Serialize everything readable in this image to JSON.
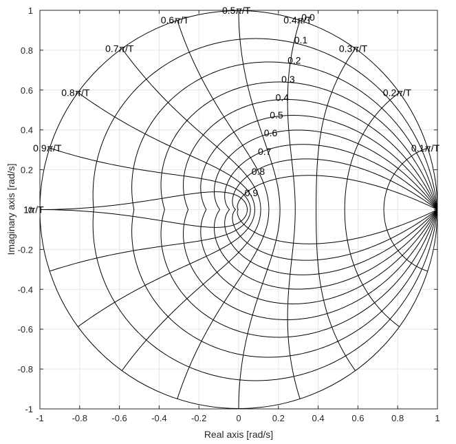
{
  "chart_data": {
    "type": "line",
    "title": "",
    "xlabel": "Real axis [rad/s]",
    "ylabel": "Imaginary axis [rad/s]",
    "xlim": [
      -1,
      1
    ],
    "ylim": [
      -1,
      1
    ],
    "grid": true,
    "x_ticks": [
      "-1",
      "-0.8",
      "-0.6",
      "-0.4",
      "-0.2",
      "0",
      "0.2",
      "0.4",
      "0.6",
      "0.8",
      "1"
    ],
    "y_ticks": [
      "1",
      "0.8",
      "0.6",
      "0.4",
      "0.2",
      "0",
      "-0.2",
      "-0.4",
      "-0.6",
      "-0.8",
      "-1"
    ],
    "zeta_values": [
      0.0,
      0.1,
      0.2,
      0.3,
      0.4,
      0.5,
      0.6,
      0.7,
      0.8,
      0.9
    ],
    "zeta_labels": [
      "0.0",
      "0.1",
      "0.2",
      "0.3",
      "0.4",
      "0.5",
      "0.6",
      "0.7",
      "0.8",
      "0.9"
    ],
    "wn_values": [
      0.1,
      0.2,
      0.3,
      0.4,
      0.5,
      0.6,
      0.7,
      0.8,
      0.9,
      1.0
    ],
    "wn_labels": [
      "0.1π/T",
      "0.2π/T",
      "0.3π/T",
      "0.4π/T",
      "0.5π/T",
      "0.6π/T",
      "0.7π/T",
      "0.8π/T",
      "0.9π/T",
      "1π/T"
    ],
    "wn_label_parts": [
      [
        "0.1",
        "π",
        "/T"
      ],
      [
        "0.2",
        "π",
        "/T"
      ],
      [
        "0.3",
        "π",
        "/T"
      ],
      [
        "0.4",
        "π",
        "/T"
      ],
      [
        "0.5",
        "π",
        "/T"
      ],
      [
        "0.6",
        "π",
        "/T"
      ],
      [
        "0.7",
        "π",
        "/T"
      ],
      [
        "0.8",
        "π",
        "/T"
      ],
      [
        "0.9",
        "π",
        "/T"
      ],
      [
        "1",
        "π",
        "/T"
      ]
    ]
  }
}
